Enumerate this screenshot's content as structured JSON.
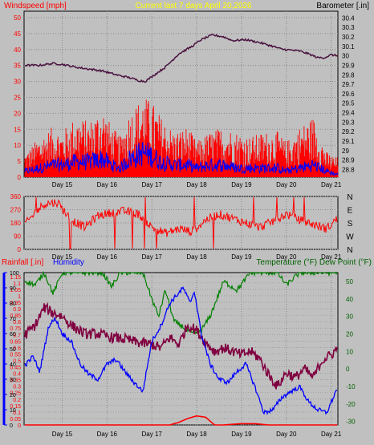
{
  "colors": {
    "background": "#c0c0c0",
    "wind_speed": "#ff0000",
    "wind_gust": "#ff0000",
    "wind_avg": "#0000ff",
    "barometer": "#4a1240",
    "direction": "#ff0000",
    "rainfall": "#ff0000",
    "humidity": "#0000ff",
    "temperature": "#800040",
    "dew_point": "#008000",
    "title": "#ffff00",
    "panel_title": "#002000",
    "grid": "#000000"
  },
  "chart_data": [
    {
      "type": "line",
      "id": "wind_baro",
      "title": "Current last 7 days April 20,2026",
      "left_label": "Windspeed [mph]",
      "right_label": "Barometer [.in]",
      "x": [
        "Day 15",
        "Day 16",
        "Day 17",
        "Day 18",
        "Day 19",
        "Day 20",
        "Day 21"
      ],
      "x_range_days": [
        14.15,
        21.15
      ],
      "left_ticks": [
        "0",
        "5",
        "10",
        "15",
        "20",
        "25",
        "30",
        "35",
        "40",
        "45",
        "50"
      ],
      "left_range": [
        0,
        52
      ],
      "right_ticks": [
        "28.8",
        "28.9",
        "29",
        "29.1",
        "29.2",
        "29.3",
        "29.4",
        "29.5",
        "29.6",
        "29.7",
        "29.8",
        "29.9",
        "30",
        "30.1",
        "30.2",
        "30.3",
        "30.4"
      ],
      "right_range": [
        28.72,
        30.47
      ],
      "series": [
        {
          "name": "Windspeed",
          "axis": "left",
          "approx_points": [
            [
              14.2,
              5
            ],
            [
              14.5,
              8
            ],
            [
              14.8,
              10
            ],
            [
              15.0,
              9
            ],
            [
              15.3,
              12
            ],
            [
              15.6,
              11
            ],
            [
              15.9,
              14
            ],
            [
              16.1,
              10
            ],
            [
              16.3,
              8
            ],
            [
              16.5,
              13
            ],
            [
              16.8,
              16
            ],
            [
              17.0,
              15
            ],
            [
              17.2,
              12
            ],
            [
              17.5,
              9
            ],
            [
              17.8,
              10
            ],
            [
              18.0,
              7
            ],
            [
              18.3,
              9
            ],
            [
              18.6,
              10
            ],
            [
              18.9,
              9
            ],
            [
              19.2,
              8
            ],
            [
              19.5,
              9
            ],
            [
              19.8,
              9
            ],
            [
              20.0,
              7
            ],
            [
              20.3,
              10
            ],
            [
              20.6,
              12
            ],
            [
              20.9,
              5
            ],
            [
              21.1,
              4
            ]
          ]
        },
        {
          "name": "Wind Avg",
          "axis": "left",
          "approx_points": [
            [
              14.2,
              2
            ],
            [
              14.5,
              3
            ],
            [
              14.8,
              4
            ],
            [
              15.0,
              4
            ],
            [
              15.3,
              5
            ],
            [
              15.6,
              5
            ],
            [
              15.9,
              6
            ],
            [
              16.1,
              4
            ],
            [
              16.3,
              3
            ],
            [
              16.5,
              6
            ],
            [
              16.8,
              8
            ],
            [
              17.0,
              7
            ],
            [
              17.2,
              5
            ],
            [
              17.5,
              4
            ],
            [
              17.8,
              4
            ],
            [
              18.0,
              3
            ],
            [
              18.3,
              4
            ],
            [
              18.6,
              4
            ],
            [
              18.9,
              3
            ],
            [
              19.2,
              3
            ],
            [
              19.5,
              3
            ],
            [
              19.8,
              3
            ],
            [
              20.0,
              2
            ],
            [
              20.3,
              3
            ],
            [
              20.6,
              4
            ],
            [
              20.9,
              2
            ],
            [
              21.1,
              1
            ]
          ]
        },
        {
          "name": "Barometer",
          "axis": "right",
          "approx_points": [
            [
              14.2,
              29.9
            ],
            [
              14.5,
              29.9
            ],
            [
              14.8,
              29.92
            ],
            [
              15.0,
              29.91
            ],
            [
              15.3,
              29.88
            ],
            [
              15.6,
              29.86
            ],
            [
              15.9,
              29.84
            ],
            [
              16.2,
              29.8
            ],
            [
              16.5,
              29.77
            ],
            [
              16.7,
              29.74
            ],
            [
              16.85,
              29.73
            ],
            [
              17.0,
              29.78
            ],
            [
              17.3,
              29.88
            ],
            [
              17.6,
              30.02
            ],
            [
              17.9,
              30.1
            ],
            [
              18.1,
              30.17
            ],
            [
              18.35,
              30.22
            ],
            [
              18.6,
              30.2
            ],
            [
              18.8,
              30.16
            ],
            [
              19.1,
              30.17
            ],
            [
              19.4,
              30.14
            ],
            [
              19.7,
              30.1
            ],
            [
              19.9,
              30.07
            ],
            [
              20.1,
              30.06
            ],
            [
              20.3,
              30.05
            ],
            [
              20.5,
              30.02
            ],
            [
              20.7,
              29.98
            ],
            [
              20.85,
              29.98
            ],
            [
              21.0,
              30.01
            ],
            [
              21.15,
              30.0
            ]
          ]
        }
      ]
    },
    {
      "type": "line",
      "id": "wind_dir",
      "x": [
        "Day 15",
        "Day 16",
        "Day 17",
        "Day 18",
        "Day 19",
        "Day 20",
        "Day 21"
      ],
      "left_ticks": [
        "0",
        "90",
        "180",
        "270",
        "360"
      ],
      "right_ticks": [
        "N",
        "W",
        "S",
        "E",
        "N"
      ],
      "y_range": [
        0,
        360
      ],
      "series": [
        {
          "name": "Wind Direction",
          "approx_points": [
            [
              14.2,
              180
            ],
            [
              14.4,
              250
            ],
            [
              14.6,
              310
            ],
            [
              14.9,
              320
            ],
            [
              15.2,
              200
            ],
            [
              15.5,
              150
            ],
            [
              15.8,
              230
            ],
            [
              16.1,
              250
            ],
            [
              16.4,
              260
            ],
            [
              16.7,
              240
            ],
            [
              17.0,
              150
            ],
            [
              17.3,
              110
            ],
            [
              17.6,
              140
            ],
            [
              17.9,
              120
            ],
            [
              18.2,
              200
            ],
            [
              18.5,
              240
            ],
            [
              18.8,
              210
            ],
            [
              19.1,
              180
            ],
            [
              19.4,
              150
            ],
            [
              19.7,
              190
            ],
            [
              20.0,
              240
            ],
            [
              20.3,
              200
            ],
            [
              20.6,
              170
            ],
            [
              20.9,
              140
            ],
            [
              21.1,
              200
            ]
          ]
        }
      ]
    },
    {
      "type": "line",
      "id": "rain_hum_temp",
      "left_labels": [
        "Rainfall [.in]",
        "Humidity"
      ],
      "right_label": "Temperature (°F) Dew Point (°F)",
      "x": [
        "Day 15",
        "Day 16",
        "Day 17",
        "Day 18",
        "Day 19",
        "Day 20",
        "Day 21"
      ],
      "humidity_ticks": [
        "0",
        "10",
        "20",
        "30",
        "40",
        "50",
        "60",
        "70",
        "80",
        "90",
        "100"
      ],
      "humidity_range": [
        0,
        100
      ],
      "rain_ticks": [
        "0",
        "0.05",
        "0.1",
        "0.15",
        "0.2",
        "0.25",
        "0.3",
        "0.35",
        "0.4",
        "0.45",
        "0.5",
        "0.55",
        "0.6",
        "0.65",
        "0.7",
        "0.75",
        "0.8",
        "0.85",
        "0.9",
        "0.95",
        "1",
        "1.05",
        "1.1",
        "1.15"
      ],
      "rain_range": [
        0,
        1.18
      ],
      "temp_ticks": [
        "-30",
        "-20",
        "-10",
        "0",
        "10",
        "20",
        "30",
        "40",
        "50"
      ],
      "temp_range": [
        -32,
        55
      ],
      "series": [
        {
          "name": "Rainfall",
          "axis": "rain",
          "approx_points": [
            [
              14.2,
              0
            ],
            [
              17.4,
              0
            ],
            [
              17.6,
              0.02
            ],
            [
              17.8,
              0.05
            ],
            [
              18.0,
              0.07
            ],
            [
              18.2,
              0.06
            ],
            [
              18.4,
              0.0
            ],
            [
              18.6,
              0.0
            ],
            [
              19.0,
              0.01
            ],
            [
              19.3,
              0.01
            ],
            [
              19.6,
              0
            ],
            [
              21.15,
              0
            ]
          ]
        },
        {
          "name": "Humidity",
          "axis": "humidity",
          "approx_points": [
            [
              14.2,
              40
            ],
            [
              14.35,
              45
            ],
            [
              14.5,
              35
            ],
            [
              14.7,
              65
            ],
            [
              14.85,
              70
            ],
            [
              15.0,
              60
            ],
            [
              15.2,
              55
            ],
            [
              15.4,
              40
            ],
            [
              15.6,
              33
            ],
            [
              15.8,
              30
            ],
            [
              16.0,
              40
            ],
            [
              16.2,
              43
            ],
            [
              16.4,
              35
            ],
            [
              16.6,
              28
            ],
            [
              16.8,
              22
            ],
            [
              17.0,
              55
            ],
            [
              17.2,
              65
            ],
            [
              17.4,
              80
            ],
            [
              17.55,
              85
            ],
            [
              17.7,
              90
            ],
            [
              17.85,
              80
            ],
            [
              17.95,
              88
            ],
            [
              18.1,
              60
            ],
            [
              18.3,
              40
            ],
            [
              18.5,
              30
            ],
            [
              18.7,
              28
            ],
            [
              18.9,
              35
            ],
            [
              19.1,
              40
            ],
            [
              19.3,
              25
            ],
            [
              19.5,
              8
            ],
            [
              19.7,
              10
            ],
            [
              19.9,
              18
            ],
            [
              20.1,
              22
            ],
            [
              20.3,
              25
            ],
            [
              20.5,
              15
            ],
            [
              20.7,
              10
            ],
            [
              20.9,
              8
            ],
            [
              21.15,
              25
            ]
          ]
        },
        {
          "name": "Temperature",
          "axis": "temp",
          "approx_points": [
            [
              14.2,
              20
            ],
            [
              14.4,
              25
            ],
            [
              14.6,
              35
            ],
            [
              14.8,
              32
            ],
            [
              15.0,
              30
            ],
            [
              15.2,
              25
            ],
            [
              15.5,
              20
            ],
            [
              15.8,
              20
            ],
            [
              16.1,
              18
            ],
            [
              16.4,
              17
            ],
            [
              16.7,
              15
            ],
            [
              17.0,
              14
            ],
            [
              17.2,
              12
            ],
            [
              17.4,
              18
            ],
            [
              17.6,
              14
            ],
            [
              17.8,
              25
            ],
            [
              18.0,
              22
            ],
            [
              18.2,
              15
            ],
            [
              18.4,
              10
            ],
            [
              18.6,
              12
            ],
            [
              18.8,
              10
            ],
            [
              19.0,
              8
            ],
            [
              19.2,
              10
            ],
            [
              19.4,
              6
            ],
            [
              19.6,
              -3
            ],
            [
              19.8,
              -10
            ],
            [
              20.0,
              -2
            ],
            [
              20.2,
              -5
            ],
            [
              20.4,
              0
            ],
            [
              20.6,
              -5
            ],
            [
              20.8,
              5
            ],
            [
              21.0,
              8
            ],
            [
              21.15,
              12
            ]
          ]
        },
        {
          "name": "Dew Point",
          "axis": "temp",
          "approx_points": [
            [
              14.2,
              50
            ],
            [
              14.4,
              48
            ],
            [
              14.6,
              55
            ],
            [
              14.8,
              43
            ],
            [
              15.0,
              55
            ],
            [
              15.3,
              55
            ],
            [
              15.6,
              55
            ],
            [
              15.9,
              55
            ],
            [
              16.1,
              47
            ],
            [
              16.3,
              55
            ],
            [
              16.6,
              55
            ],
            [
              16.8,
              55
            ],
            [
              17.0,
              40
            ],
            [
              17.15,
              30
            ],
            [
              17.3,
              45
            ],
            [
              17.5,
              27
            ],
            [
              17.7,
              24
            ],
            [
              17.9,
              20
            ],
            [
              18.1,
              22
            ],
            [
              18.3,
              30
            ],
            [
              18.6,
              50
            ],
            [
              18.9,
              45
            ],
            [
              19.2,
              55
            ],
            [
              19.5,
              55
            ],
            [
              19.8,
              55
            ],
            [
              20.0,
              48
            ],
            [
              20.3,
              55
            ],
            [
              20.6,
              55
            ],
            [
              20.9,
              55
            ],
            [
              21.15,
              55
            ]
          ]
        }
      ]
    }
  ]
}
